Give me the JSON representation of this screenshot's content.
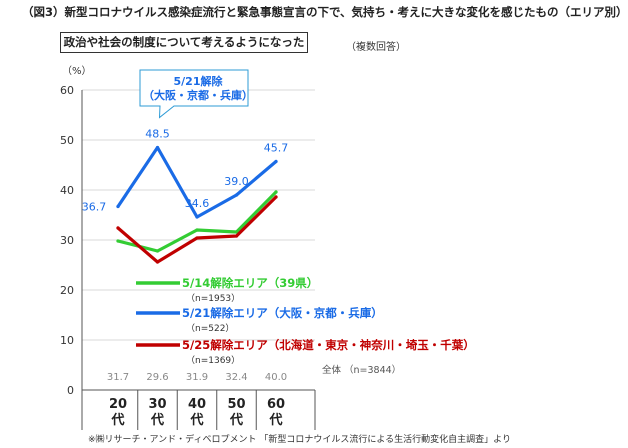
{
  "heading": "（図3）新型コロナウイルス感染症流行と緊急事態宣言の下で、気持ち・考えに大きな変化を感じたもの（エリア別）",
  "subtitle": "政治や社会の制度について考えるようになった",
  "note": "（複数回答）",
  "unit": "（%）",
  "source": "※㈱リサーチ・アンド・ディベロプメント 「新型コロナウイルス流行による生活行動変化自主調査」より",
  "callout": {
    "line1": "5/21解除",
    "line2": "（大阪・京都・兵庫）"
  },
  "overall_label": "全体 （n=3844）",
  "colors": {
    "green": "#33cc33",
    "blue": "#1a6be6",
    "red": "#c00000"
  },
  "chart_data": {
    "type": "line",
    "categories": [
      "20代",
      "30代",
      "40代",
      "50代",
      "60代"
    ],
    "ylim": [
      0,
      60
    ],
    "yticks": [
      0,
      10,
      20,
      30,
      40,
      50,
      60
    ],
    "ylabel": "（%）",
    "series": [
      {
        "name": "5/14解除エリア（39県）",
        "n": "（n=1953）",
        "color": "#33cc33",
        "values": [
          29.8,
          27.8,
          32.0,
          31.6,
          39.6
        ]
      },
      {
        "name": "5/21解除エリア（大阪・京都・兵庫）",
        "n": "（n=522）",
        "color": "#1a6be6",
        "values": [
          36.7,
          48.5,
          34.6,
          39.0,
          45.7
        ],
        "labels": [
          "36.7",
          "48.5",
          "34.6",
          "39.0",
          "45.7"
        ]
      },
      {
        "name": "5/25解除エリア（北海道・東京・神奈川・埼玉・千葉）",
        "n": "（n=1369）",
        "color": "#c00000",
        "values": [
          32.4,
          25.6,
          30.4,
          30.8,
          38.6
        ]
      }
    ],
    "overall": [
      "31.7",
      "29.6",
      "31.9",
      "32.4",
      "40.0"
    ]
  }
}
